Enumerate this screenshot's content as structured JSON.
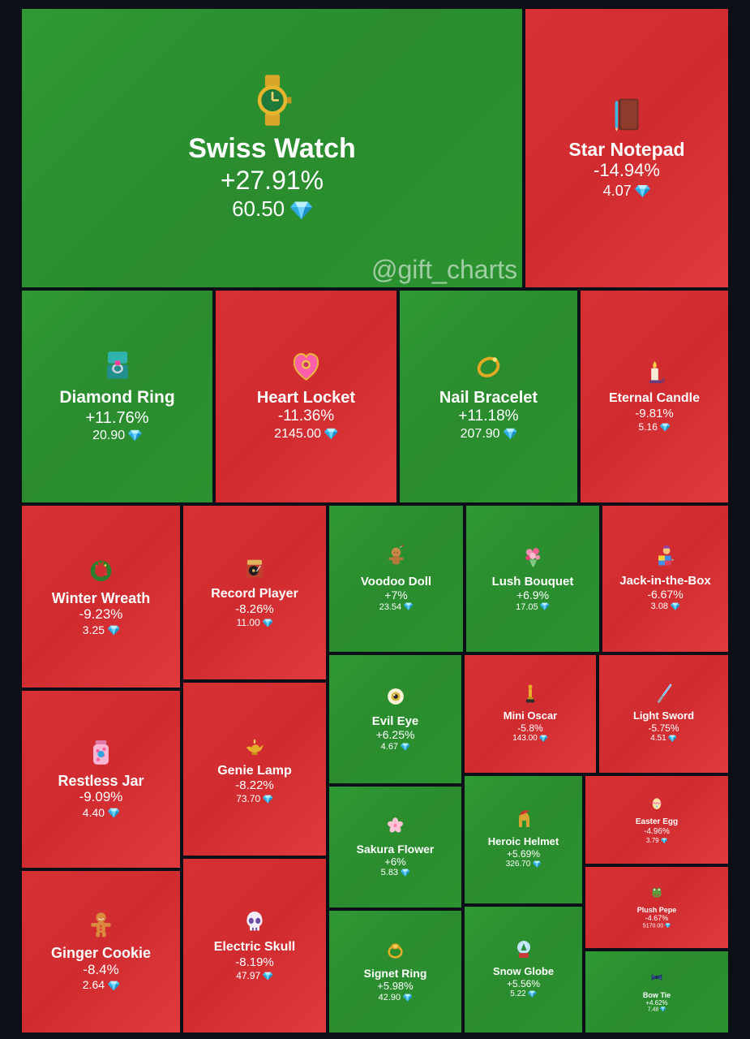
{
  "watermark": "@gift_charts",
  "colors": {
    "up": "#2a8c2e",
    "down": "#d32f31",
    "gem": "#4fc3f7"
  },
  "chart_data": {
    "type": "treemap",
    "items": [
      {
        "name": "Swiss Watch",
        "change": "+27.91%",
        "price": "60.50",
        "icon": "watch-icon"
      },
      {
        "name": "Star Notepad",
        "change": "-14.94%",
        "price": "4.07",
        "icon": "notepad-icon"
      },
      {
        "name": "Diamond Ring",
        "change": "+11.76%",
        "price": "20.90",
        "icon": "ring-box-icon"
      },
      {
        "name": "Heart Locket",
        "change": "-11.36%",
        "price": "2145.00",
        "icon": "heart-locket-icon"
      },
      {
        "name": "Nail Bracelet",
        "change": "+11.18%",
        "price": "207.90",
        "icon": "bracelet-icon"
      },
      {
        "name": "Eternal Candle",
        "change": "-9.81%",
        "price": "5.16",
        "icon": "candle-icon"
      },
      {
        "name": "Winter Wreath",
        "change": "-9.23%",
        "price": "3.25",
        "icon": "wreath-icon"
      },
      {
        "name": "Record Player",
        "change": "-8.26%",
        "price": "11.00",
        "icon": "record-player-icon"
      },
      {
        "name": "Voodoo Doll",
        "change": "+7%",
        "price": "23.54",
        "icon": "voodoo-doll-icon"
      },
      {
        "name": "Lush Bouquet",
        "change": "+6.9%",
        "price": "17.05",
        "icon": "bouquet-icon"
      },
      {
        "name": "Jack-in-the-Box",
        "change": "-6.67%",
        "price": "3.08",
        "icon": "jack-in-the-box-icon"
      },
      {
        "name": "Evil Eye",
        "change": "+6.25%",
        "price": "4.67",
        "icon": "eye-icon"
      },
      {
        "name": "Mini Oscar",
        "change": "-5.8%",
        "price": "143.00",
        "icon": "trophy-icon"
      },
      {
        "name": "Light Sword",
        "change": "-5.75%",
        "price": "4.51",
        "icon": "light-sword-icon"
      },
      {
        "name": "Restless Jar",
        "change": "-9.09%",
        "price": "4.40",
        "icon": "jar-icon"
      },
      {
        "name": "Genie Lamp",
        "change": "-8.22%",
        "price": "73.70",
        "icon": "genie-lamp-icon"
      },
      {
        "name": "Sakura Flower",
        "change": "+6%",
        "price": "5.83",
        "icon": "sakura-icon"
      },
      {
        "name": "Heroic Helmet",
        "change": "+5.69%",
        "price": "326.70",
        "icon": "helmet-icon"
      },
      {
        "name": "Easter Egg",
        "change": "-4.96%",
        "price": "3.79",
        "icon": "egg-icon"
      },
      {
        "name": "Plush Pepe",
        "change": "-4.67%",
        "price": "5170.00",
        "icon": "frog-icon"
      },
      {
        "name": "Ginger Cookie",
        "change": "-8.4%",
        "price": "2.64",
        "icon": "gingerbread-icon"
      },
      {
        "name": "Electric Skull",
        "change": "-8.19%",
        "price": "47.97",
        "icon": "skull-icon"
      },
      {
        "name": "Signet Ring",
        "change": "+5.98%",
        "price": "42.90",
        "icon": "signet-ring-icon"
      },
      {
        "name": "Snow Globe",
        "change": "+5.56%",
        "price": "5.22",
        "icon": "snow-globe-icon"
      },
      {
        "name": "Bow Tie",
        "change": "+4.62%",
        "price": "7.48",
        "icon": "bow-tie-icon"
      }
    ]
  }
}
